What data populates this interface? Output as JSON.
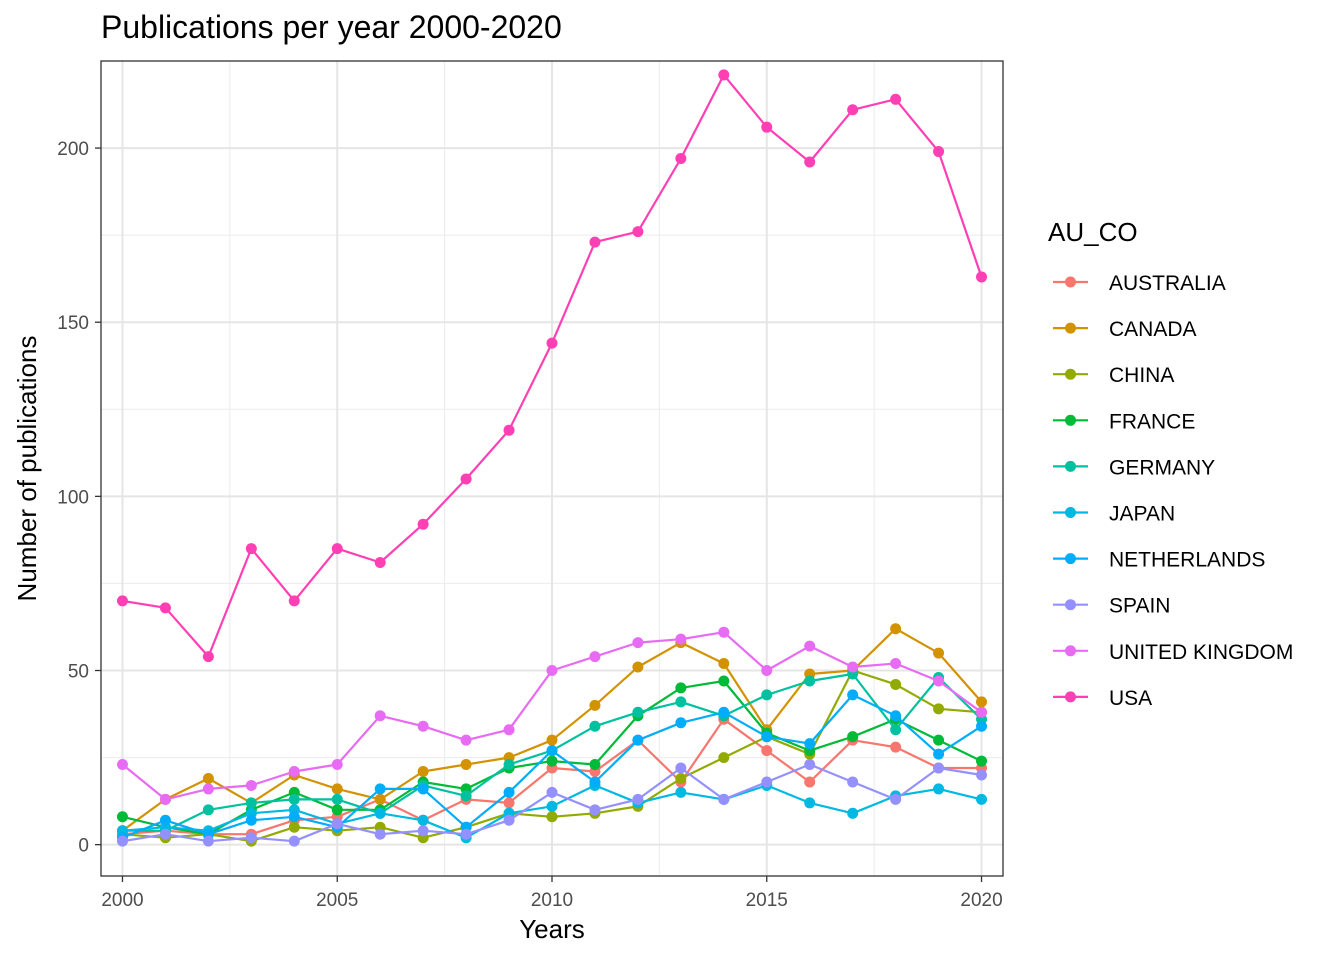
{
  "chart_data": {
    "type": "line",
    "title": "Publications per year 2000-2020",
    "xlabel": "Years",
    "ylabel": "Number of publications",
    "xlim": [
      1999.5,
      2020.5
    ],
    "ylim": [
      -9,
      225
    ],
    "x_ticks": [
      2000,
      2005,
      2010,
      2015,
      2020
    ],
    "y_ticks": [
      0,
      50,
      100,
      150,
      200
    ],
    "grid": true,
    "legend": {
      "title": "AU_CO",
      "position": "right"
    },
    "x": [
      2000,
      2001,
      2002,
      2003,
      2004,
      2005,
      2006,
      2007,
      2008,
      2009,
      2010,
      2011,
      2012,
      2013,
      2014,
      2015,
      2016,
      2017,
      2018,
      2019,
      2020
    ],
    "series": [
      {
        "name": "AUSTRALIA",
        "color": "#F8766D",
        "values": [
          3,
          4,
          3,
          3,
          7,
          8,
          13,
          7,
          13,
          12,
          22,
          21,
          30,
          18,
          36,
          27,
          18,
          30,
          28,
          22,
          22
        ]
      },
      {
        "name": "CANADA",
        "color": "#D39200",
        "values": [
          4,
          13,
          19,
          12,
          20,
          16,
          13,
          21,
          23,
          25,
          30,
          40,
          51,
          58,
          52,
          33,
          49,
          50,
          62,
          55,
          41
        ]
      },
      {
        "name": "CHINA",
        "color": "#93AA00",
        "values": [
          3,
          2,
          3,
          1,
          5,
          4,
          5,
          2,
          5,
          9,
          8,
          9,
          11,
          19,
          25,
          31,
          26,
          50,
          46,
          39,
          38
        ]
      },
      {
        "name": "FRANCE",
        "color": "#00BA38",
        "values": [
          8,
          5,
          3,
          10,
          15,
          10,
          10,
          18,
          16,
          22,
          24,
          23,
          37,
          45,
          47,
          32,
          27,
          31,
          36,
          30,
          24
        ]
      },
      {
        "name": "GERMANY",
        "color": "#00C19F",
        "values": [
          4,
          4,
          10,
          12,
          13,
          13,
          9,
          17,
          14,
          23,
          27,
          34,
          38,
          41,
          37,
          43,
          47,
          49,
          33,
          48,
          36
        ]
      },
      {
        "name": "JAPAN",
        "color": "#00B9E3",
        "values": [
          4,
          5,
          4,
          9,
          10,
          6,
          9,
          7,
          2,
          9,
          11,
          17,
          12,
          15,
          13,
          17,
          12,
          9,
          14,
          16,
          13
        ]
      },
      {
        "name": "NETHERLANDS",
        "color": "#00ADFA",
        "values": [
          2,
          7,
          3,
          7,
          8,
          5,
          16,
          16,
          5,
          15,
          27,
          18,
          30,
          35,
          38,
          31,
          29,
          43,
          37,
          26,
          34
        ]
      },
      {
        "name": "SPAIN",
        "color": "#9590FF",
        "values": [
          1,
          3,
          1,
          2,
          1,
          6,
          3,
          4,
          3,
          7,
          15,
          10,
          13,
          22,
          13,
          18,
          23,
          18,
          13,
          22,
          20
        ]
      },
      {
        "name": "UNITED KINGDOM",
        "color": "#E76BF3",
        "values": [
          23,
          13,
          16,
          17,
          21,
          23,
          37,
          34,
          30,
          33,
          50,
          54,
          58,
          59,
          61,
          50,
          57,
          51,
          52,
          47,
          38
        ]
      },
      {
        "name": "USA",
        "color": "#FF3FB4",
        "values": [
          70,
          68,
          54,
          85,
          70,
          85,
          81,
          92,
          105,
          119,
          144,
          173,
          176,
          197,
          221,
          206,
          196,
          211,
          214,
          199,
          163
        ]
      }
    ]
  }
}
